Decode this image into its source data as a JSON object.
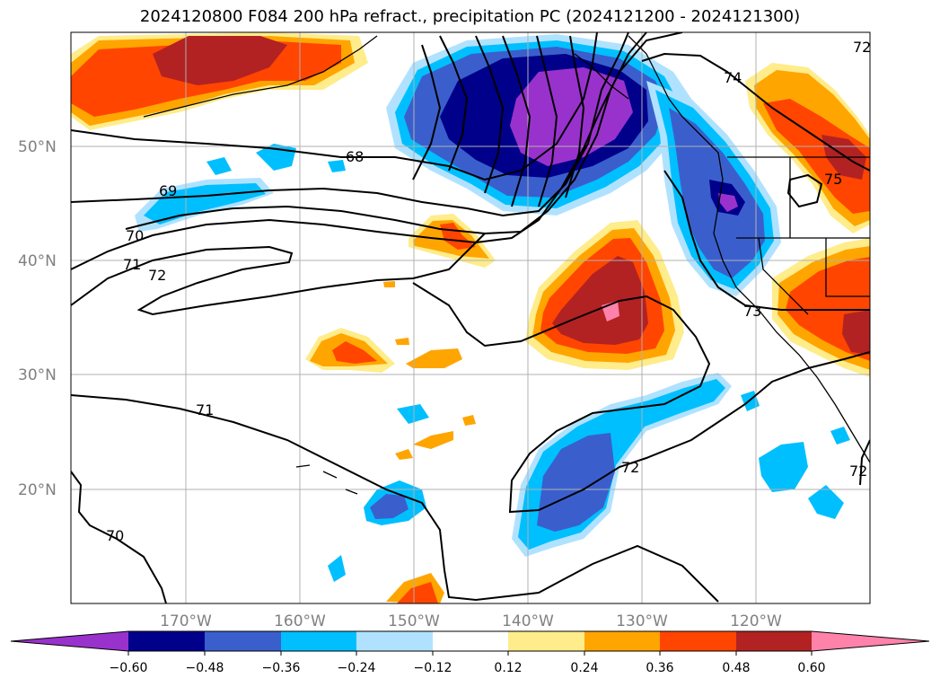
{
  "title": "2024120800 F084 200 hPa refract., precipitation PC (2024121200 - 2024121300)",
  "latitude_labels": [
    "50°N",
    "40°N",
    "30°N",
    "20°N"
  ],
  "longitude_labels": [
    "170°W",
    "160°W",
    "150°W",
    "140°W",
    "130°W",
    "120°W"
  ],
  "contour_labels": [
    "68",
    "69",
    "70",
    "71",
    "72",
    "72",
    "73",
    "74",
    "75",
    "71",
    "70",
    "72",
    "72"
  ],
  "colorbar": {
    "ticks": [
      "−0.60",
      "−0.48",
      "−0.36",
      "−0.24",
      "−0.12",
      "0.12",
      "0.24",
      "0.36",
      "0.48",
      "0.60"
    ],
    "colors": [
      "#9932cc",
      "#00008b",
      "#3a5fcd",
      "#00bfff",
      "#b0e2ff",
      "#ffffff",
      "#ffec8b",
      "#ffa500",
      "#ff4500",
      "#b22222",
      "#ff82ab"
    ]
  },
  "colors": {
    "purple": "#9932cc",
    "navy": "#00008b",
    "blue": "#3a5fcd",
    "sky": "#00bfff",
    "light_sky": "#b0e2ff",
    "yellow": "#ffec8b",
    "orange": "#ffa500",
    "red_orange": "#ff4500",
    "firebrick": "#b22222",
    "pink": "#ff82ab"
  }
}
